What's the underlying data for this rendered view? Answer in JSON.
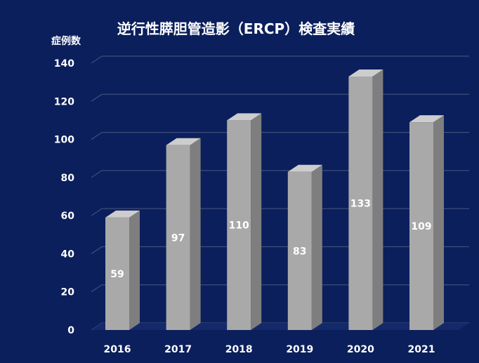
{
  "chart_data": {
    "type": "bar",
    "title": "逆行性膵胆管造影（ERCP）検査実績",
    "ylabel": "症例数",
    "xlabel": "",
    "categories": [
      "2016",
      "2017",
      "2018",
      "2019",
      "2020",
      "2021"
    ],
    "values": [
      59,
      97,
      110,
      83,
      133,
      109
    ],
    "data_labels": [
      "59",
      "97",
      "110",
      "83",
      "133",
      "109"
    ],
    "ylim": [
      0,
      140
    ],
    "yticks": [
      "0",
      "20",
      "40",
      "60",
      "80",
      "100",
      "120",
      "140"
    ],
    "ytick_values": [
      0,
      20,
      40,
      60,
      80,
      100,
      120,
      140
    ],
    "grid": true,
    "legend": "none",
    "colors": {
      "background": "#0b1f5c",
      "bar_front": "#a9a9a9",
      "bar_side": "#7e7e7e",
      "bar_top": "#cdcdcd",
      "text": "#ffffff",
      "grid": "#4a5880"
    }
  }
}
